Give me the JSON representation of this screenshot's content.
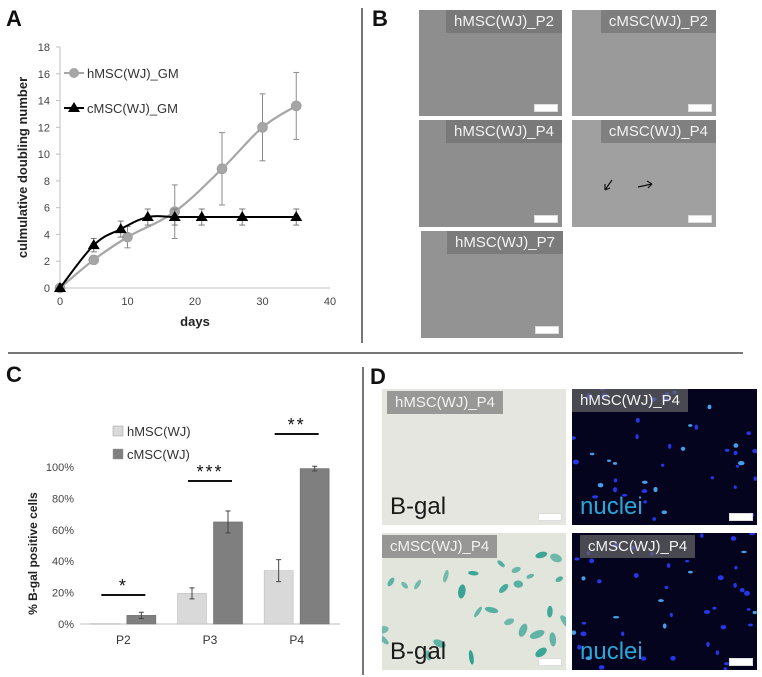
{
  "panels": {
    "A": {
      "label": "A"
    },
    "B": {
      "label": "B"
    },
    "C": {
      "label": "C"
    },
    "D": {
      "label": "D"
    }
  },
  "panel_b": {
    "images": [
      {
        "label": "hMSC(WJ)_P2"
      },
      {
        "label": "cMSC(WJ)_P2"
      },
      {
        "label": "hMSC(WJ)_P4"
      },
      {
        "label": "cMSC(WJ)_P4"
      },
      {
        "label": "hMSC(WJ)_P7"
      }
    ]
  },
  "panel_d": {
    "images": [
      {
        "label": "hMSC(WJ)_P4",
        "stain": "B-gal"
      },
      {
        "label": "hMSC(WJ)_P4",
        "stain": "nuclei"
      },
      {
        "label": "cMSC(WJ)_P4",
        "stain": "B-gal"
      },
      {
        "label": "cMSC(WJ)_P4",
        "stain": "nuclei"
      }
    ]
  },
  "chart_data": [
    {
      "type": "line",
      "title": "",
      "xlabel": "days",
      "ylabel": "culmulative doubling number",
      "xlim": [
        0,
        40
      ],
      "ylim": [
        0,
        18
      ],
      "xticks": [
        0,
        10,
        20,
        30,
        40
      ],
      "yticks": [
        0,
        2,
        4,
        6,
        8,
        10,
        12,
        14,
        16,
        18
      ],
      "grid": false,
      "legend_position": "upper-left",
      "series": [
        {
          "name": "hMSC(WJ)_GM",
          "color": "#a6a6a6",
          "marker": "circle",
          "x": [
            0,
            5,
            10,
            17,
            24,
            30,
            35
          ],
          "y": [
            0,
            2.1,
            3.8,
            5.7,
            8.9,
            12.0,
            13.6
          ],
          "err": [
            0,
            0.3,
            0.8,
            2.0,
            2.7,
            2.5,
            2.5
          ]
        },
        {
          "name": "cMSC(WJ)_GM",
          "color": "#000000",
          "marker": "triangle",
          "x": [
            0,
            5,
            9,
            13,
            17,
            21,
            27,
            35
          ],
          "y": [
            0,
            3.2,
            4.4,
            5.3,
            5.3,
            5.3,
            5.3,
            5.3
          ],
          "err": [
            0,
            0.5,
            0.6,
            0.6,
            0.6,
            0.6,
            0.6,
            0.6
          ]
        }
      ]
    },
    {
      "type": "bar",
      "title": "",
      "xlabel": "",
      "ylabel": "% B-gal positive cells",
      "categories": [
        "P2",
        "P3",
        "P4"
      ],
      "ylim": [
        0,
        100
      ],
      "yticks": [
        "0%",
        "20%",
        "40%",
        "60%",
        "80%",
        "100%"
      ],
      "grid": false,
      "legend_position": "upper-left",
      "series": [
        {
          "name": "hMSC(WJ)",
          "color": "#d9d9d9",
          "values": [
            0.3,
            19.5,
            34
          ],
          "err": [
            0,
            3.5,
            7
          ]
        },
        {
          "name": "cMSC(WJ)",
          "color": "#7f7f7f",
          "values": [
            5.5,
            65,
            99
          ],
          "err": [
            2,
            7,
            1.5
          ]
        }
      ],
      "annotations": [
        {
          "category": "P2",
          "text": "*"
        },
        {
          "category": "P3",
          "text": "***"
        },
        {
          "category": "P4",
          "text": "**"
        }
      ]
    }
  ]
}
